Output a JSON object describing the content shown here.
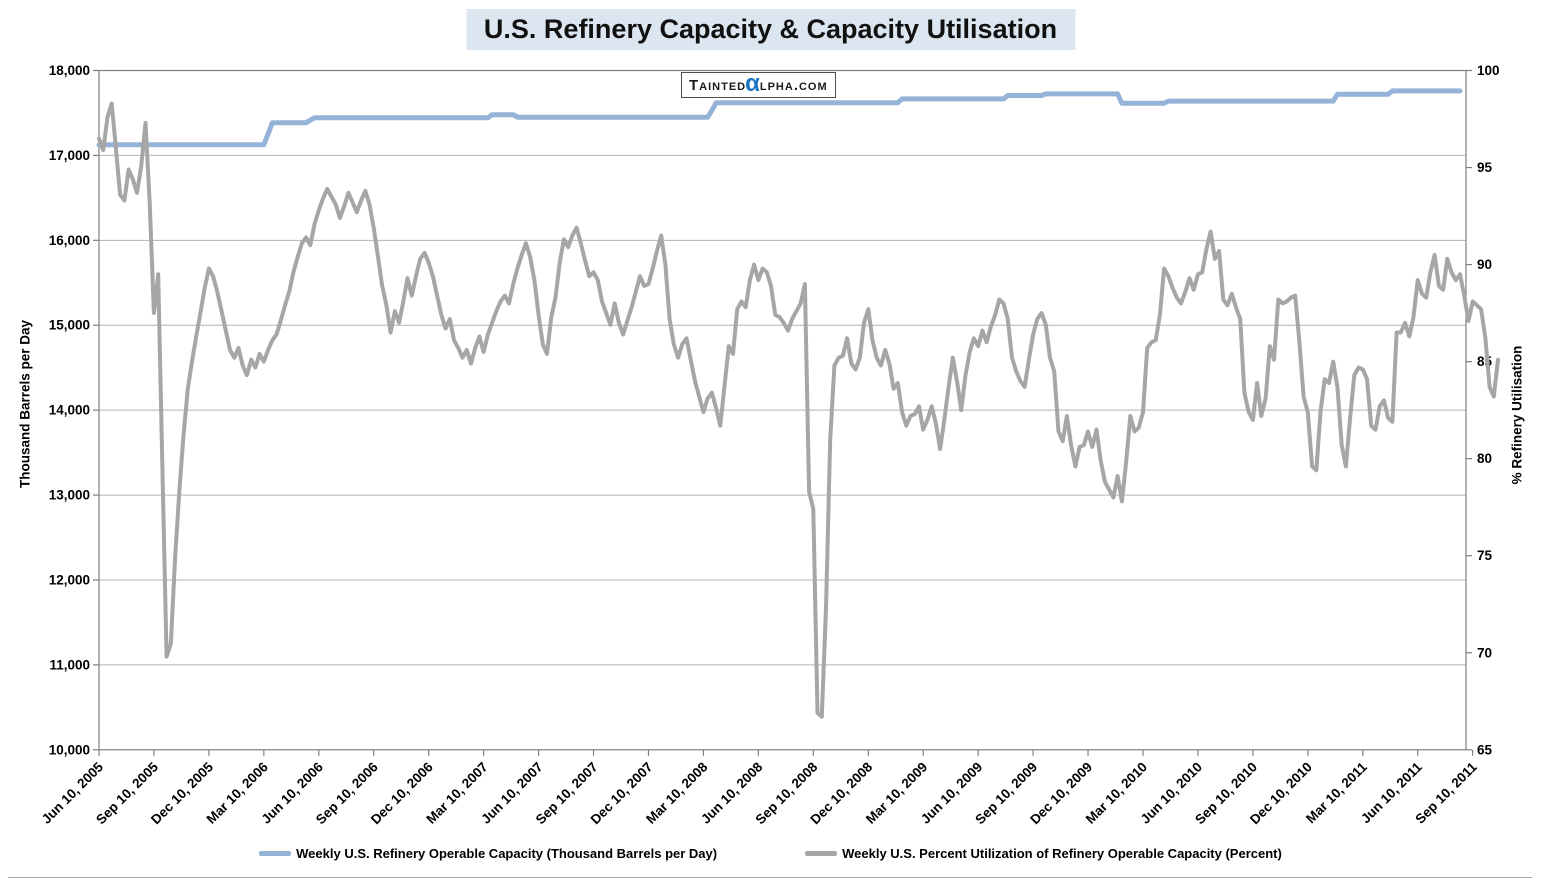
{
  "title": "U.S. Refinery Capacity & Capacity Utilisation",
  "watermark": {
    "part1": "Tainted",
    "alpha": "α",
    "part2": "lpha.com",
    "alpha_color": "#1c74c4"
  },
  "chart_data": {
    "type": "line",
    "title": "U.S. Refinery Capacity & Capacity Utilisation",
    "x_start": "Jun 10, 2005",
    "x_end": "~Oct 2011",
    "x_step": "1 week",
    "grid": "horizontal-on",
    "legend_position": "bottom",
    "x_tick_labels": [
      "Jun 10, 2005",
      "Sep 10, 2005",
      "Dec 10, 2005",
      "Mar 10, 2006",
      "Jun 10, 2006",
      "Sep 10, 2006",
      "Dec 10, 2006",
      "Mar 10, 2007",
      "Jun 10, 2007",
      "Sep 10, 2007",
      "Dec 10, 2007",
      "Mar 10, 2008",
      "Jun 10, 2008",
      "Sep 10, 2008",
      "Dec 10, 2008",
      "Mar 10, 2009",
      "Jun 10, 2009",
      "Sep 10, 2009",
      "Dec 10, 2009",
      "Mar 10, 2010",
      "Jun 10, 2010",
      "Sep 10, 2010",
      "Dec 10, 2010",
      "Mar 10, 2011",
      "Jun 10, 2011",
      "Sep 10, 2011"
    ],
    "weeks_per_tick": 13,
    "left_axis": {
      "title": "Thousand Barrels per Day",
      "min": 10000,
      "max": 18000,
      "tick_labels": [
        "18,000",
        "17,000",
        "16,000",
        "15,000",
        "14,000",
        "13,000",
        "12,000",
        "11,000",
        "10,000"
      ]
    },
    "right_axis": {
      "title": "% Refinery Utilisation",
      "min": 65,
      "max": 100,
      "tick_labels": [
        "100",
        "95",
        "90",
        "85",
        "80",
        "75",
        "70",
        "65"
      ]
    },
    "series": [
      {
        "name": "Weekly U.S. Refinery Operable Capacity  (Thousand Barrels per Day)",
        "axis": "left",
        "color": "#95b3d7",
        "stroke_width": 5,
        "values": [
          17125,
          17125,
          17125,
          17125,
          17125,
          17125,
          17125,
          17125,
          17125,
          17125,
          17125,
          17125,
          17125,
          17125,
          17125,
          17125,
          17125,
          17125,
          17125,
          17125,
          17125,
          17125,
          17125,
          17125,
          17125,
          17125,
          17125,
          17125,
          17125,
          17125,
          17125,
          17125,
          17125,
          17125,
          17125,
          17125,
          17125,
          17125,
          17125,
          17125,
          17255,
          17385,
          17385,
          17385,
          17385,
          17385,
          17385,
          17385,
          17385,
          17385,
          17415,
          17443,
          17443,
          17443,
          17443,
          17443,
          17443,
          17443,
          17443,
          17443,
          17443,
          17443,
          17443,
          17443,
          17443,
          17443,
          17443,
          17443,
          17443,
          17443,
          17443,
          17443,
          17443,
          17443,
          17443,
          17443,
          17443,
          17443,
          17443,
          17443,
          17443,
          17443,
          17443,
          17443,
          17443,
          17443,
          17443,
          17443,
          17443,
          17443,
          17443,
          17443,
          17443,
          17480,
          17480,
          17480,
          17480,
          17480,
          17480,
          17450,
          17450,
          17450,
          17450,
          17450,
          17450,
          17450,
          17450,
          17450,
          17450,
          17450,
          17450,
          17450,
          17450,
          17450,
          17450,
          17450,
          17450,
          17450,
          17450,
          17450,
          17450,
          17450,
          17450,
          17450,
          17450,
          17450,
          17450,
          17450,
          17450,
          17450,
          17450,
          17450,
          17450,
          17450,
          17450,
          17450,
          17450,
          17450,
          17450,
          17450,
          17450,
          17450,
          17450,
          17450,
          17450,
          17530,
          17620,
          17620,
          17620,
          17620,
          17620,
          17620,
          17620,
          17620,
          17620,
          17620,
          17620,
          17620,
          17620,
          17620,
          17620,
          17620,
          17620,
          17620,
          17620,
          17620,
          17620,
          17620,
          17620,
          17620,
          17620,
          17620,
          17620,
          17620,
          17620,
          17620,
          17620,
          17620,
          17620,
          17620,
          17620,
          17620,
          17620,
          17620,
          17620,
          17620,
          17620,
          17620,
          17620,
          17620,
          17665,
          17665,
          17665,
          17665,
          17665,
          17665,
          17665,
          17665,
          17665,
          17665,
          17665,
          17665,
          17665,
          17665,
          17665,
          17665,
          17665,
          17665,
          17665,
          17665,
          17665,
          17665,
          17665,
          17665,
          17665,
          17705,
          17705,
          17705,
          17705,
          17705,
          17705,
          17705,
          17705,
          17705,
          17725,
          17725,
          17725,
          17725,
          17725,
          17725,
          17725,
          17725,
          17725,
          17725,
          17725,
          17725,
          17725,
          17725,
          17725,
          17725,
          17725,
          17725,
          17615,
          17615,
          17615,
          17615,
          17615,
          17615,
          17615,
          17615,
          17615,
          17615,
          17615,
          17640,
          17640,
          17640,
          17640,
          17640,
          17640,
          17640,
          17640,
          17640,
          17640,
          17640,
          17640,
          17640,
          17640,
          17640,
          17640,
          17640,
          17640,
          17640,
          17640,
          17640,
          17640,
          17640,
          17640,
          17640,
          17640,
          17640,
          17640,
          17640,
          17640,
          17640,
          17640,
          17640,
          17640,
          17640,
          17640,
          17640,
          17640,
          17640,
          17640,
          17720,
          17720,
          17720,
          17720,
          17720,
          17720,
          17720,
          17720,
          17720,
          17720,
          17720,
          17720,
          17720,
          17760,
          17760,
          17760,
          17760,
          17760,
          17760,
          17760,
          17760,
          17760,
          17760,
          17760,
          17760,
          17760,
          17760,
          17760,
          17760,
          17760
        ]
      },
      {
        "name": "Weekly U.S. Percent Utilization of Refinery Operable Capacity  (Percent)",
        "axis": "right",
        "color": "#a6a6a6",
        "stroke_width": 4,
        "values": [
          96.5,
          95.9,
          97.6,
          98.3,
          96.0,
          93.6,
          93.3,
          94.9,
          94.4,
          93.7,
          95.1,
          97.3,
          93.2,
          87.5,
          89.5,
          79.5,
          69.8,
          70.5,
          74.9,
          78.3,
          81.2,
          83.6,
          85.0,
          86.3,
          87.5,
          88.8,
          89.8,
          89.4,
          88.6,
          87.6,
          86.6,
          85.6,
          85.2,
          85.7,
          84.8,
          84.3,
          85.1,
          84.7,
          85.4,
          85.0,
          85.6,
          86.1,
          86.4,
          87.1,
          87.9,
          88.6,
          89.6,
          90.4,
          91.1,
          91.4,
          91.0,
          92.1,
          92.8,
          93.4,
          93.9,
          93.5,
          93.1,
          92.4,
          93.0,
          93.7,
          93.2,
          92.7,
          93.3,
          93.8,
          93.1,
          91.9,
          90.4,
          88.9,
          87.9,
          86.5,
          87.6,
          87.0,
          88.1,
          89.3,
          88.4,
          89.4,
          90.3,
          90.6,
          90.1,
          89.4,
          88.4,
          87.4,
          86.7,
          87.2,
          86.1,
          85.7,
          85.2,
          85.6,
          84.9,
          85.7,
          86.3,
          85.5,
          86.4,
          87.0,
          87.6,
          88.1,
          88.4,
          88.0,
          89.0,
          89.8,
          90.5,
          91.1,
          90.4,
          89.2,
          87.4,
          85.9,
          85.4,
          87.3,
          88.3,
          90.1,
          91.3,
          90.9,
          91.5,
          91.9,
          91.1,
          90.2,
          89.4,
          89.6,
          89.2,
          88.1,
          87.5,
          86.9,
          88.0,
          87.0,
          86.4,
          87.1,
          87.8,
          88.6,
          89.4,
          88.9,
          89.0,
          89.8,
          90.7,
          91.5,
          90.0,
          87.2,
          85.9,
          85.2,
          85.9,
          86.2,
          85.1,
          84.0,
          83.2,
          82.4,
          83.1,
          83.4,
          82.6,
          81.7,
          83.8,
          85.8,
          85.4,
          87.7,
          88.1,
          87.8,
          89.2,
          90.0,
          89.2,
          89.8,
          89.6,
          88.9,
          87.4,
          87.3,
          87.0,
          86.6,
          87.2,
          87.6,
          88.0,
          89.0,
          78.3,
          77.4,
          66.9,
          66.7,
          72.3,
          81.0,
          84.8,
          85.2,
          85.3,
          86.2,
          84.9,
          84.6,
          85.2,
          87.0,
          87.7,
          86.1,
          85.2,
          84.8,
          85.6,
          84.9,
          83.6,
          83.9,
          82.4,
          81.7,
          82.2,
          82.3,
          82.7,
          81.5,
          82.0,
          82.7,
          81.8,
          80.5,
          82.0,
          83.7,
          85.2,
          84.0,
          82.5,
          84.3,
          85.5,
          86.2,
          85.8,
          86.6,
          86.0,
          86.8,
          87.4,
          88.2,
          88.0,
          87.2,
          85.2,
          84.5,
          84.0,
          83.7,
          85.1,
          86.4,
          87.2,
          87.5,
          86.9,
          85.2,
          84.5,
          81.4,
          80.9,
          82.2,
          80.7,
          79.6,
          80.6,
          80.7,
          81.4,
          80.6,
          81.5,
          79.9,
          78.8,
          78.4,
          78.0,
          79.1,
          77.8,
          79.8,
          82.2,
          81.4,
          81.6,
          82.4,
          85.7,
          86.0,
          86.1,
          87.4,
          89.8,
          89.4,
          88.8,
          88.3,
          88.0,
          88.6,
          89.3,
          88.7,
          89.5,
          89.6,
          90.8,
          91.7,
          90.3,
          90.7,
          88.2,
          87.9,
          88.5,
          87.8,
          87.2,
          83.4,
          82.4,
          82.0,
          83.9,
          82.2,
          83.1,
          85.8,
          85.1,
          88.2,
          88.0,
          88.1,
          88.3,
          88.4,
          86.0,
          83.2,
          82.4,
          79.6,
          79.4,
          82.4,
          84.1,
          83.9,
          85.0,
          83.7,
          80.7,
          79.6,
          82.1,
          84.3,
          84.7,
          84.6,
          84.1,
          81.7,
          81.5,
          82.7,
          83.0,
          82.1,
          81.9,
          86.5,
          86.5,
          87.0,
          86.3,
          87.3,
          89.2,
          88.5,
          88.3,
          89.6,
          90.5,
          88.9,
          88.7,
          90.3,
          89.6,
          89.2,
          89.5,
          88.4,
          87.1,
          88.1,
          87.9,
          87.7,
          86.2,
          83.7,
          83.2,
          85.1
        ]
      }
    ]
  }
}
